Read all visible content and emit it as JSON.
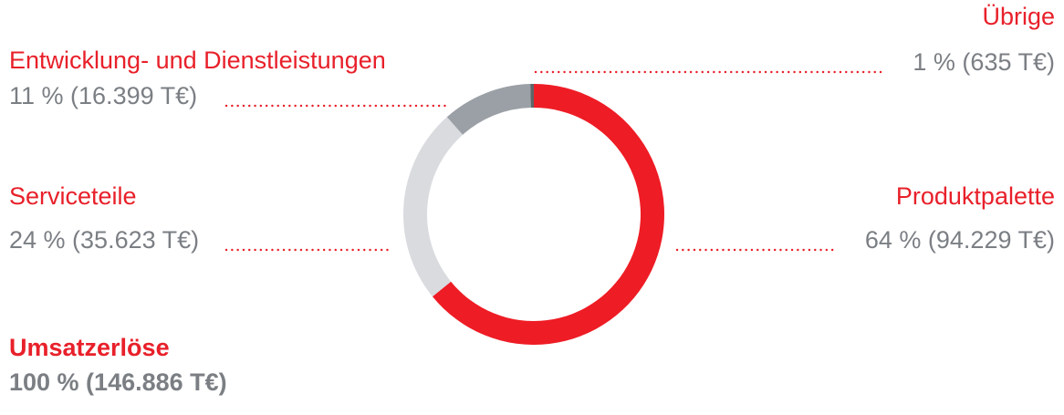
{
  "chart_data": {
    "type": "donut",
    "categories": [
      "Produktpalette",
      "Serviceteile",
      "Entwicklung- und Dienstleistungen",
      "Übrige"
    ],
    "values": [
      94229,
      35623,
      16399,
      635
    ],
    "value_labels": [
      "64 % (94.229 T€)",
      "24 % (35.623 T€)",
      "11 % (16.399 T€)",
      "1 % (635 T€)"
    ],
    "colors": [
      "#ee1c25",
      "#d9dbdf",
      "#9ba0a6",
      "#5f6469"
    ],
    "total": {
      "name": "Umsatzerlöse",
      "value": 146886,
      "value_label": "100 % (146.886 T€)"
    }
  }
}
